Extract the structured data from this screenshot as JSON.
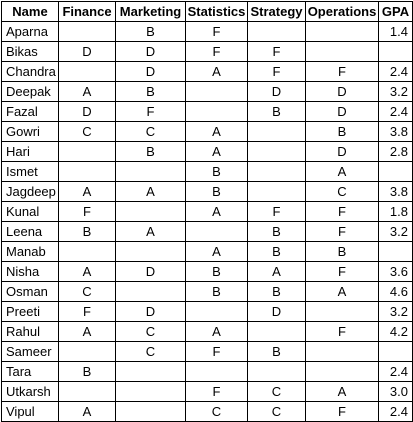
{
  "table": {
    "headers": [
      "Name",
      "Finance",
      "Marketing",
      "Statistics",
      "Strategy",
      "Operations",
      "GPA"
    ],
    "rows": [
      [
        "Aparna",
        "",
        "B",
        "F",
        "",
        "",
        "1.4"
      ],
      [
        "Bikas",
        "D",
        "D",
        "F",
        "F",
        "",
        ""
      ],
      [
        "Chandra",
        "",
        "D",
        "A",
        "F",
        "F",
        "2.4"
      ],
      [
        "Deepak",
        "A",
        "B",
        "",
        "D",
        "D",
        "3.2"
      ],
      [
        "Fazal",
        "D",
        "F",
        "",
        "B",
        "D",
        "2.4"
      ],
      [
        "Gowri",
        "C",
        "C",
        "A",
        "",
        "B",
        "3.8"
      ],
      [
        "Hari",
        "",
        "B",
        "A",
        "",
        "D",
        "2.8"
      ],
      [
        "Ismet",
        "",
        "",
        "B",
        "",
        "A",
        ""
      ],
      [
        "Jagdeep",
        "A",
        "A",
        "B",
        "",
        "C",
        "3.8"
      ],
      [
        "Kunal",
        "F",
        "",
        "A",
        "F",
        "F",
        "1.8"
      ],
      [
        "Leena",
        "B",
        "A",
        "",
        "B",
        "F",
        "3.2"
      ],
      [
        "Manab",
        "",
        "",
        "A",
        "B",
        "B",
        ""
      ],
      [
        "Nisha",
        "A",
        "D",
        "B",
        "A",
        "F",
        "3.6"
      ],
      [
        "Osman",
        "C",
        "",
        "B",
        "B",
        "A",
        "4.6"
      ],
      [
        "Preeti",
        "F",
        "D",
        "",
        "D",
        "",
        "3.2"
      ],
      [
        "Rahul",
        "A",
        "C",
        "A",
        "",
        "F",
        "4.2"
      ],
      [
        "Sameer",
        "",
        "C",
        "F",
        "B",
        "",
        ""
      ],
      [
        "Tara",
        "B",
        "",
        "",
        "",
        "",
        "2.4"
      ],
      [
        "Utkarsh",
        "",
        "",
        "F",
        "C",
        "A",
        "3.0"
      ],
      [
        "Vipul",
        "A",
        "",
        "C",
        "C",
        "F",
        "2.4"
      ]
    ]
  }
}
